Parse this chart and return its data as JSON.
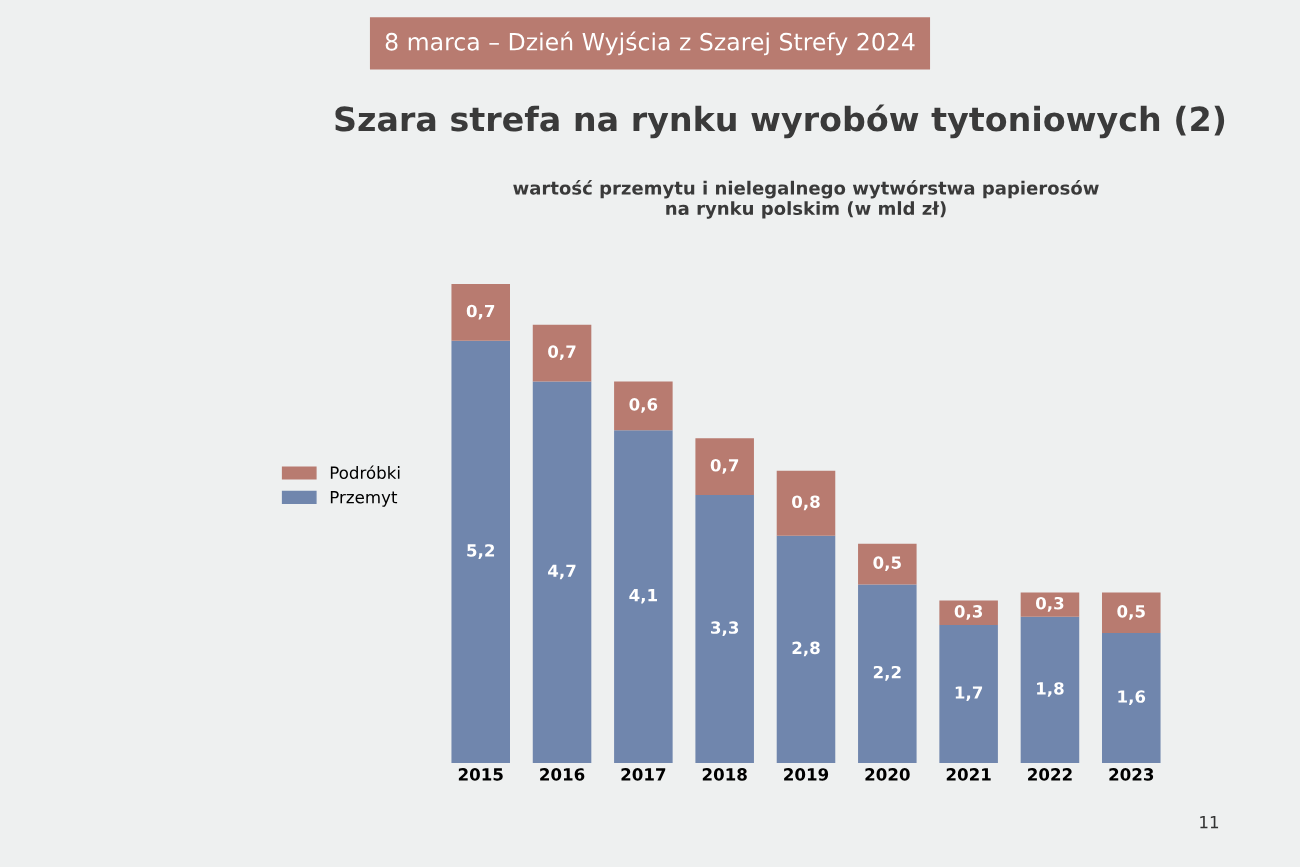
{
  "chart_data": {
    "type": "bar",
    "stacked": true,
    "title": "Szara strefa na rynku wyrobów tytoniowych (2)",
    "subtitle": "wartość przemytu i nielegalnego wytwórstwa papierosów\nna rynku polskim (w mld zł)",
    "categories": [
      "2015",
      "2016",
      "2017",
      "2018",
      "2019",
      "2020",
      "2021",
      "2022",
      "2023"
    ],
    "series": [
      {
        "name": "Przemyt",
        "color": "#7086ad",
        "values": [
          5.2,
          4.7,
          4.1,
          3.3,
          2.8,
          2.2,
          1.7,
          1.8,
          1.6
        ],
        "value_labels": [
          "5,2",
          "4,7",
          "4,1",
          "3,3",
          "2,8",
          "2,2",
          "1,7",
          "1,8",
          "1,6"
        ]
      },
      {
        "name": "Podróbki",
        "color": "#b87b70",
        "values": [
          0.7,
          0.7,
          0.6,
          0.7,
          0.8,
          0.5,
          0.3,
          0.3,
          0.5
        ],
        "value_labels": [
          "0,7",
          "0,7",
          "0,6",
          "0,7",
          "0,8",
          "0,5",
          "0,3",
          "0,3",
          "0,5"
        ]
      }
    ],
    "legend": "left",
    "tick_labels": "x",
    "grid": false,
    "annotations": [
      "8 marca – Dzień Wyjścia z Szarej Strefy 2024",
      "11"
    ]
  }
}
